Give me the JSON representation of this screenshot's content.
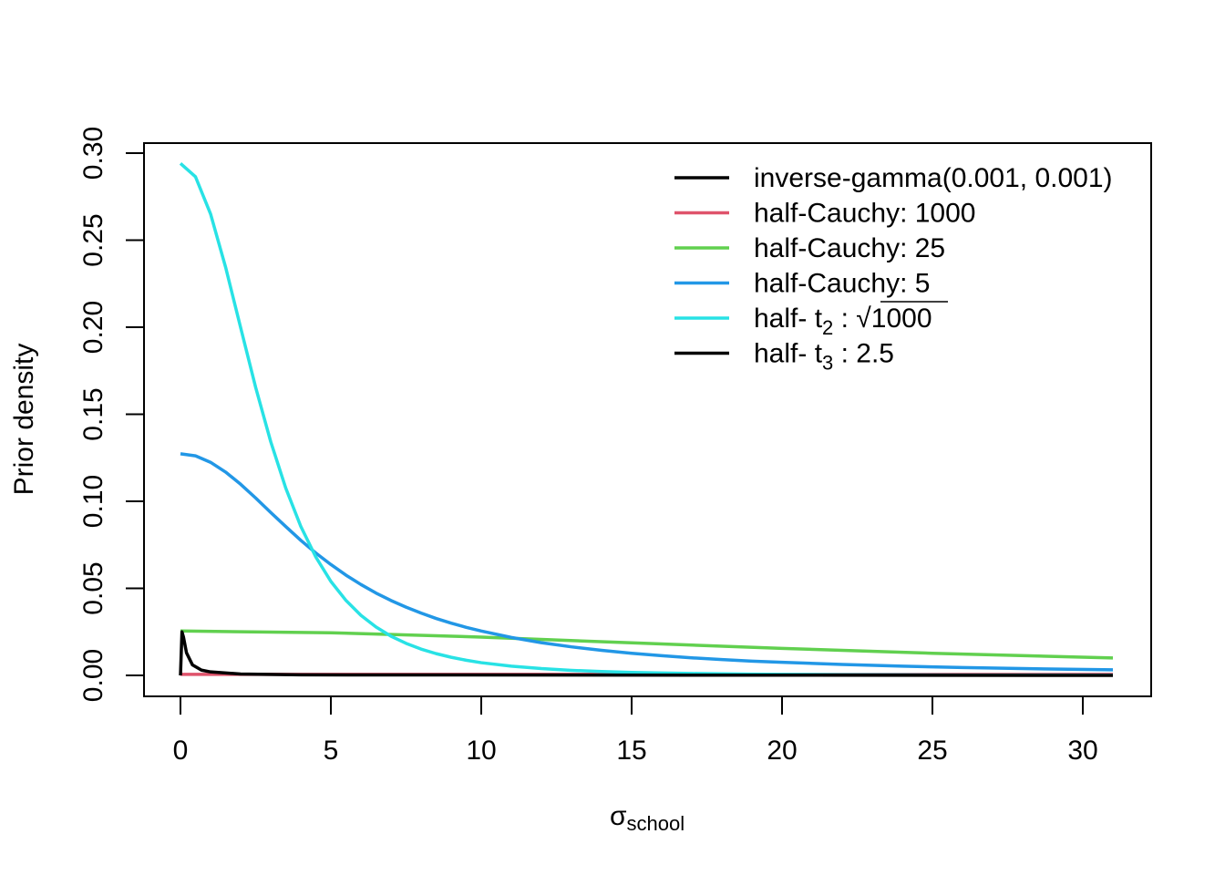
{
  "chart_data": {
    "type": "line",
    "title": "",
    "xlabel": "σ",
    "xlabel_sub": "school",
    "ylabel": "Prior density",
    "xlim": [
      -1.2,
      32.3
    ],
    "ylim": [
      -0.012,
      0.306
    ],
    "xticks": [
      0,
      5,
      10,
      15,
      20,
      25,
      30
    ],
    "yticks": [
      "0.00",
      "0.05",
      "0.10",
      "0.15",
      "0.20",
      "0.25",
      "0.30"
    ],
    "grid": false,
    "legend_placement": "top-right",
    "legend": [
      {
        "text": "inverse-gamma(0.001, 0.001)",
        "color": "#000000"
      },
      {
        "text": "half-Cauchy: 1000",
        "color": "#DF536B"
      },
      {
        "text": "half-Cauchy: 25",
        "color": "#61D04F"
      },
      {
        "text": "half-Cauchy: 5",
        "color": "#2297E6"
      },
      {
        "text": "half- t",
        "sub": "2",
        "after": " : ",
        "sqrt": "1000",
        "color": "#28E2E5"
      },
      {
        "text": "half- t",
        "sub": "3",
        "after": " : 2.5",
        "color": "#000000"
      }
    ],
    "series": [
      {
        "color": "#DF536B",
        "x": [
          0,
          31
        ],
        "y": [
          0.0006,
          0.0006
        ]
      },
      {
        "color": "#61D04F",
        "x": [
          0,
          5,
          10,
          15,
          20,
          25,
          31
        ],
        "y": [
          0.0255,
          0.0245,
          0.022,
          0.0187,
          0.0155,
          0.0127,
          0.01
        ]
      },
      {
        "color": "#2297E6",
        "x": [
          0,
          0.5,
          1,
          1.5,
          2,
          2.5,
          3,
          3.5,
          4,
          4.5,
          5,
          5.5,
          6,
          6.5,
          7,
          7.5,
          8,
          8.5,
          9,
          9.5,
          10,
          11,
          12,
          13,
          14,
          15,
          16,
          17,
          18,
          19,
          20,
          22,
          24,
          26,
          28,
          31
        ],
        "y": [
          0.1273,
          0.1261,
          0.1224,
          0.1168,
          0.1098,
          0.1019,
          0.0936,
          0.0855,
          0.0776,
          0.0703,
          0.0637,
          0.0576,
          0.0522,
          0.0473,
          0.043,
          0.0392,
          0.0358,
          0.0327,
          0.03,
          0.0276,
          0.0255,
          0.0218,
          0.0188,
          0.0164,
          0.0144,
          0.0127,
          0.0113,
          0.0101,
          0.0091,
          0.0082,
          0.0075,
          0.0063,
          0.0053,
          0.0045,
          0.0039,
          0.0032
        ]
      },
      {
        "color": "#28E2E5",
        "x": [
          0,
          0.5,
          1,
          1.5,
          2,
          2.5,
          3,
          3.5,
          4,
          4.5,
          5,
          5.5,
          6,
          6.5,
          7,
          7.5,
          8,
          8.5,
          9,
          9.5,
          10,
          11,
          12,
          13,
          14,
          15,
          16,
          17,
          18,
          19,
          20,
          22,
          24,
          26,
          28,
          31
        ],
        "y": [
          0.2941,
          0.2864,
          0.2651,
          0.2345,
          0.1998,
          0.1654,
          0.1343,
          0.1076,
          0.0856,
          0.068,
          0.054,
          0.0431,
          0.0345,
          0.0278,
          0.0225,
          0.0184,
          0.0151,
          0.0125,
          0.0104,
          0.0087,
          0.0073,
          0.0053,
          0.0039,
          0.0029,
          0.0022,
          0.0017,
          0.0014,
          0.0011,
          0.0009,
          0.0007,
          0.0006,
          0.0004,
          0.0003,
          0.0002,
          0.0002,
          0.0001
        ]
      },
      {
        "color": "#000000",
        "x": [
          0,
          0.02,
          0.05,
          0.1,
          0.2,
          0.4,
          0.7,
          1,
          2,
          4,
          31
        ],
        "y": [
          0,
          0.01,
          0.025,
          0.022,
          0.013,
          0.006,
          0.003,
          0.002,
          0.0008,
          0.0003,
          0.0
        ]
      }
    ]
  }
}
